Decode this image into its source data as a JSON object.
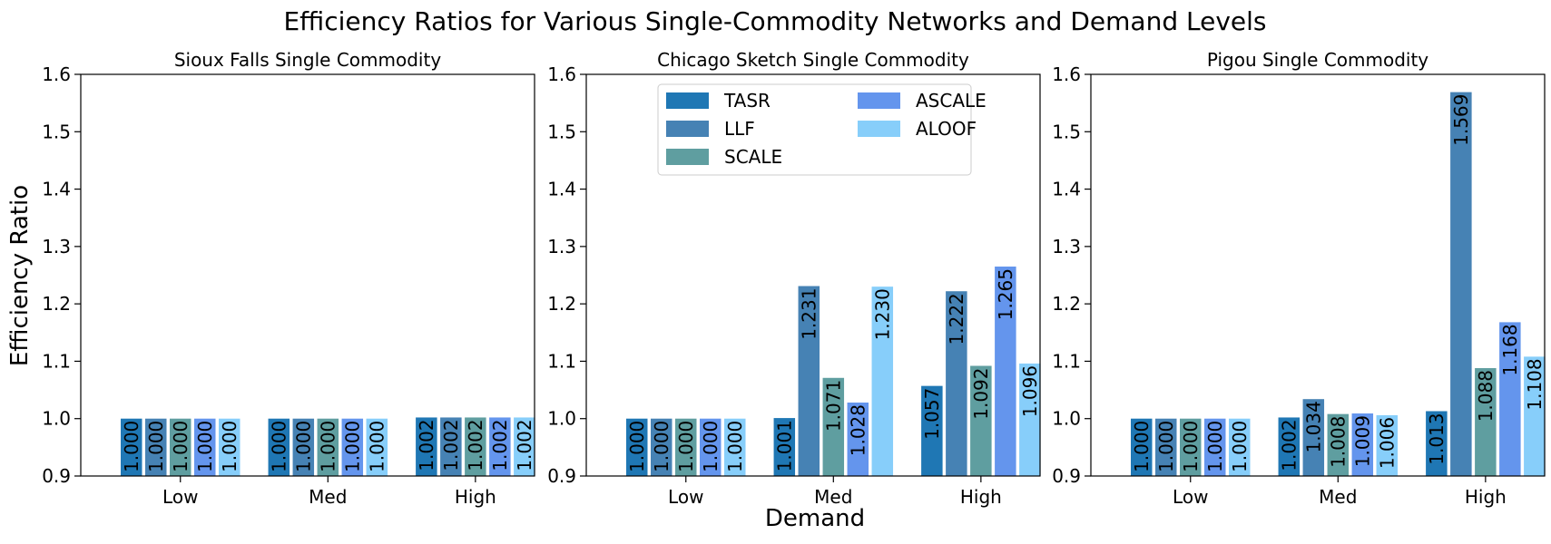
{
  "figure_title": "Efficiency Ratios for Various Single-Commodity Networks and Demand Levels",
  "xlabel": "Demand",
  "ylabel": "Efficiency Ratio",
  "colors": {
    "TASR": "#1f77b4",
    "LLF": "#4682b4",
    "SCALE": "#5f9ea0",
    "ASCALE": "#6495ed",
    "ALOOF": "#87cefa"
  },
  "chart_data": [
    {
      "type": "bar",
      "title": "Sioux Falls Single Commodity",
      "categories": [
        "Low",
        "Med",
        "High"
      ],
      "ylim": [
        0.9,
        1.6
      ],
      "yticks": [
        "0.9",
        "1.0",
        "1.1",
        "1.2",
        "1.3",
        "1.4",
        "1.5",
        "1.6"
      ],
      "series": [
        {
          "name": "TASR",
          "values": [
            1.0,
            1.0,
            1.002
          ],
          "labels": [
            "1.000",
            "1.000",
            "1.002"
          ]
        },
        {
          "name": "LLF",
          "values": [
            1.0,
            1.0,
            1.002
          ],
          "labels": [
            "1.000",
            "1.000",
            "1.002"
          ]
        },
        {
          "name": "SCALE",
          "values": [
            1.0,
            1.0,
            1.002
          ],
          "labels": [
            "1.000",
            "1.000",
            "1.002"
          ]
        },
        {
          "name": "ASCALE",
          "values": [
            1.0,
            1.0,
            1.002
          ],
          "labels": [
            "1.000",
            "1.000",
            "1.002"
          ]
        },
        {
          "name": "ALOOF",
          "values": [
            1.0,
            1.0,
            1.002
          ],
          "labels": [
            "1.000",
            "1.000",
            "1.002"
          ]
        }
      ],
      "legend": null
    },
    {
      "type": "bar",
      "title": "Chicago Sketch Single Commodity",
      "categories": [
        "Low",
        "Med",
        "High"
      ],
      "ylim": [
        0.9,
        1.6
      ],
      "yticks": [
        "0.9",
        "1.0",
        "1.1",
        "1.2",
        "1.3",
        "1.4",
        "1.5",
        "1.6"
      ],
      "series": [
        {
          "name": "TASR",
          "values": [
            1.0,
            1.001,
            1.057
          ],
          "labels": [
            "1.000",
            "1.001",
            "1.057"
          ]
        },
        {
          "name": "LLF",
          "values": [
            1.0,
            1.231,
            1.222
          ],
          "labels": [
            "1.000",
            "1.231",
            "1.222"
          ]
        },
        {
          "name": "SCALE",
          "values": [
            1.0,
            1.071,
            1.092
          ],
          "labels": [
            "1.000",
            "1.071",
            "1.092"
          ]
        },
        {
          "name": "ASCALE",
          "values": [
            1.0,
            1.028,
            1.265
          ],
          "labels": [
            "1.000",
            "1.028",
            "1.265"
          ]
        },
        {
          "name": "ALOOF",
          "values": [
            1.0,
            1.23,
            1.096
          ],
          "labels": [
            "1.000",
            "1.230",
            "1.096"
          ]
        }
      ],
      "legend": "upper-center"
    },
    {
      "type": "bar",
      "title": "Pigou Single Commodity",
      "categories": [
        "Low",
        "Med",
        "High"
      ],
      "ylim": [
        0.9,
        1.6
      ],
      "yticks": [
        "0.9",
        "1.0",
        "1.1",
        "1.2",
        "1.3",
        "1.4",
        "1.5",
        "1.6"
      ],
      "series": [
        {
          "name": "TASR",
          "values": [
            1.0,
            1.002,
            1.013
          ],
          "labels": [
            "1.000",
            "1.002",
            "1.013"
          ]
        },
        {
          "name": "LLF",
          "values": [
            1.0,
            1.034,
            1.569
          ],
          "labels": [
            "1.000",
            "1.034",
            "1.569"
          ]
        },
        {
          "name": "SCALE",
          "values": [
            1.0,
            1.008,
            1.088
          ],
          "labels": [
            "1.000",
            "1.008",
            "1.088"
          ]
        },
        {
          "name": "ASCALE",
          "values": [
            1.0,
            1.009,
            1.168
          ],
          "labels": [
            "1.000",
            "1.009",
            "1.168"
          ]
        },
        {
          "name": "ALOOF",
          "values": [
            1.0,
            1.006,
            1.108
          ],
          "labels": [
            "1.000",
            "1.006",
            "1.108"
          ]
        }
      ],
      "legend": null
    }
  ]
}
